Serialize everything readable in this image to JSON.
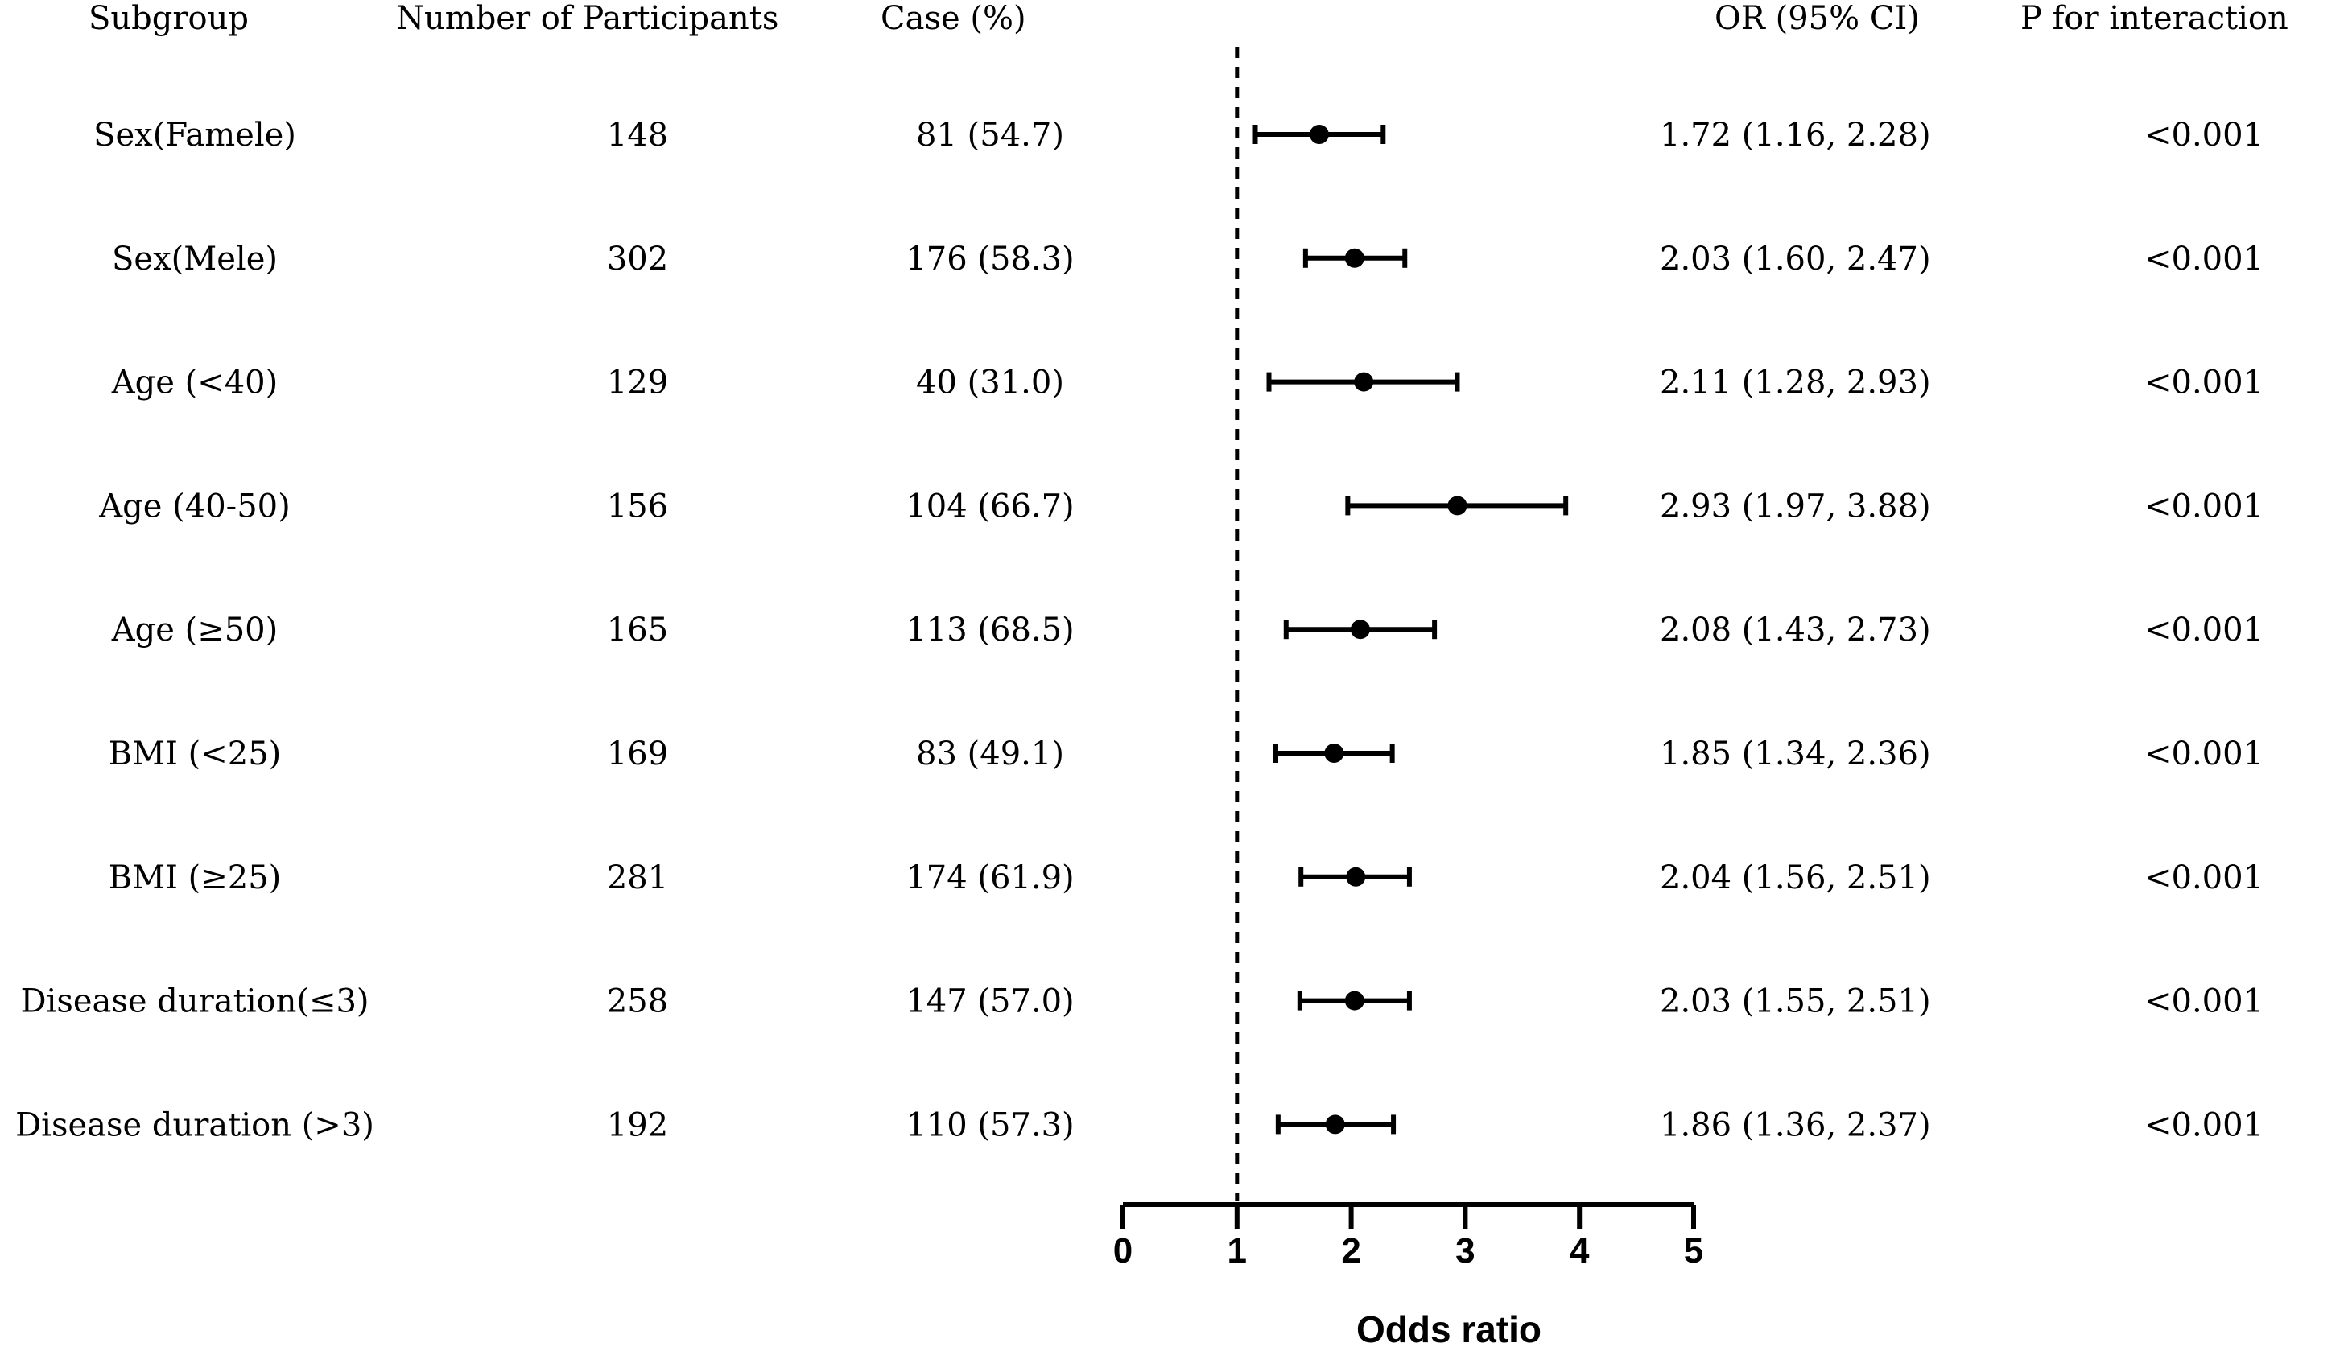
{
  "headers": {
    "subgroup": "Subgroup",
    "participants": "Number of Participants",
    "case": "Case (%)",
    "or": "OR (95% CI)",
    "p": "P for interaction"
  },
  "rows": [
    {
      "subgroup": "Sex(Famele)",
      "n": "148",
      "case": "81 (54.7)",
      "or_text": "1.72 (1.16, 2.28)",
      "p": "<0.001"
    },
    {
      "subgroup": "Sex(Mele)",
      "n": "302",
      "case": "176 (58.3)",
      "or_text": "2.03 (1.60, 2.47)",
      "p": "<0.001"
    },
    {
      "subgroup": "Age (<40)",
      "n": "129",
      "case": "40 (31.0)",
      "or_text": "2.11 (1.28, 2.93)",
      "p": "<0.001"
    },
    {
      "subgroup": "Age (40-50)",
      "n": "156",
      "case": "104 (66.7)",
      "or_text": "2.93 (1.97, 3.88)",
      "p": "<0.001"
    },
    {
      "subgroup": "Age (≥50)",
      "n": "165",
      "case": "113 (68.5)",
      "or_text": "2.08 (1.43, 2.73)",
      "p": "<0.001"
    },
    {
      "subgroup": "BMI (<25)",
      "n": "169",
      "case": "83 (49.1)",
      "or_text": "1.85 (1.34, 2.36)",
      "p": "<0.001"
    },
    {
      "subgroup": "BMI (≥25)",
      "n": "281",
      "case": "174 (61.9)",
      "or_text": "2.04 (1.56, 2.51)",
      "p": "<0.001"
    },
    {
      "subgroup": "Disease duration(≤3)",
      "n": "258",
      "case": "147 (57.0)",
      "or_text": "2.03 (1.55, 2.51)",
      "p": "<0.001"
    },
    {
      "subgroup": "Disease duration (>3)",
      "n": "192",
      "case": "110 (57.3)",
      "or_text": "1.86 (1.36, 2.37)",
      "p": "<0.001"
    }
  ],
  "chart_data": {
    "type": "scatter",
    "subtype": "forest",
    "xlabel": "Odds ratio",
    "xlim": [
      0,
      5
    ],
    "xticks": [
      "0",
      "1",
      "2",
      "3",
      "4",
      "5"
    ],
    "reference_line": 1,
    "categories": [
      "Sex(Famele)",
      "Sex(Mele)",
      "Age (<40)",
      "Age (40-50)",
      "Age (≥50)",
      "BMI (<25)",
      "BMI (≥25)",
      "Disease duration(≤3)",
      "Disease duration (>3)"
    ],
    "or": [
      1.72,
      2.03,
      2.11,
      2.93,
      2.08,
      1.85,
      2.04,
      2.03,
      1.86
    ],
    "lower": [
      1.16,
      1.6,
      1.28,
      1.97,
      1.43,
      1.34,
      1.56,
      1.55,
      1.36
    ],
    "upper": [
      2.28,
      2.47,
      2.93,
      3.88,
      2.73,
      2.36,
      2.51,
      2.51,
      2.37
    ]
  }
}
